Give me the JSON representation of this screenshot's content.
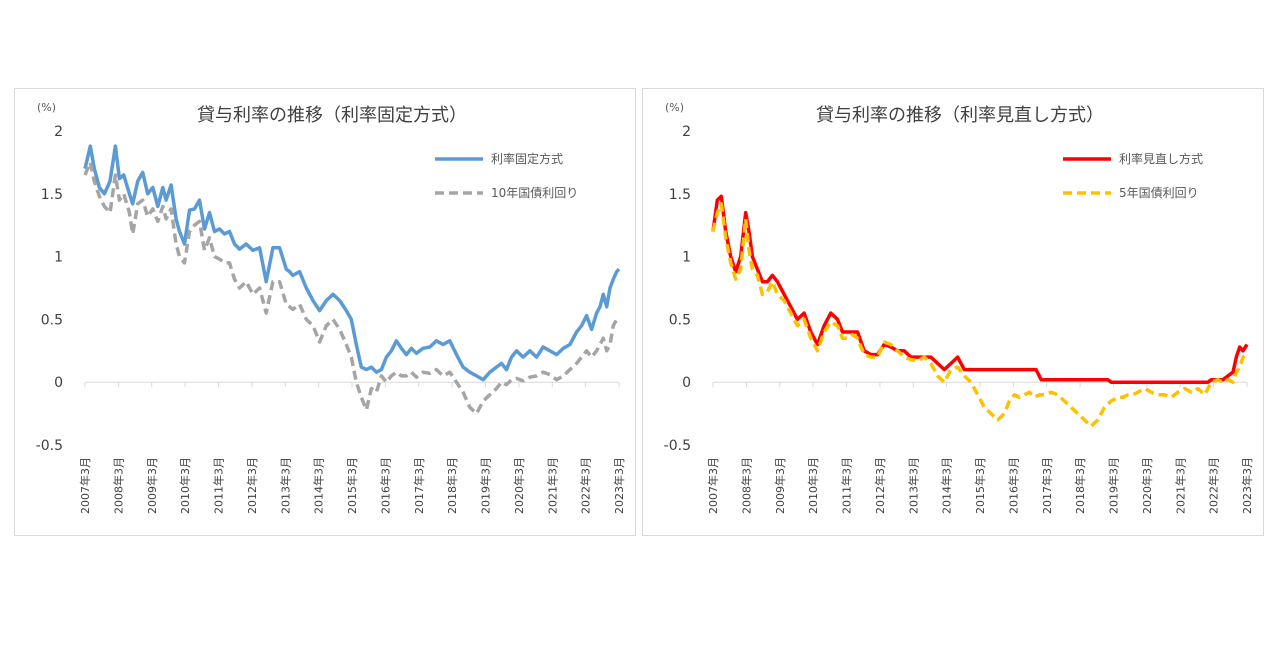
{
  "charts": [
    {
      "chart_data": {
        "type": "line",
        "title": "貸与利率の推移（利率固定方式）",
        "yunit": "(%)",
        "ylim": [
          -0.5,
          2
        ],
        "yticks": [
          "2",
          "1.5",
          "1",
          "0.5",
          "0",
          "-0.5"
        ],
        "ytick_values": [
          2,
          1.5,
          1,
          0.5,
          0,
          -0.5
        ],
        "xlim": [
          2007.17,
          2023.17
        ],
        "xticks": [
          "2007年3月",
          "2008年3月",
          "2009年3月",
          "2010年3月",
          "2011年3月",
          "2012年3月",
          "2013年3月",
          "2014年3月",
          "2015年3月",
          "2016年3月",
          "2017年3月",
          "2018年3月",
          "2019年3月",
          "2020年3月",
          "2021年3月",
          "2022年3月",
          "2023年3月"
        ],
        "legend_position": "top-right",
        "grid": false,
        "series": [
          {
            "name": "利率固定方式",
            "color": "#5b9bd5",
            "dash": "solid",
            "x": [
              2007.17,
              2007.33,
              2007.45,
              2007.6,
              2007.75,
              2007.92,
              2008.08,
              2008.2,
              2008.33,
              2008.5,
              2008.6,
              2008.75,
              2008.9,
              2009.05,
              2009.2,
              2009.35,
              2009.5,
              2009.6,
              2009.75,
              2009.9,
              2010.0,
              2010.15,
              2010.3,
              2010.45,
              2010.6,
              2010.75,
              2010.9,
              2011.05,
              2011.2,
              2011.35,
              2011.5,
              2011.65,
              2011.8,
              2012.0,
              2012.2,
              2012.4,
              2012.6,
              2012.8,
              2013.0,
              2013.2,
              2013.3,
              2013.4,
              2013.6,
              2013.8,
              2014.0,
              2014.2,
              2014.4,
              2014.6,
              2014.8,
              2015.0,
              2015.15,
              2015.3,
              2015.45,
              2015.6,
              2015.75,
              2015.9,
              2016.05,
              2016.2,
              2016.35,
              2016.5,
              2016.65,
              2016.8,
              2016.95,
              2017.1,
              2017.3,
              2017.5,
              2017.7,
              2017.9,
              2018.1,
              2018.3,
              2018.5,
              2018.7,
              2018.9,
              2019.1,
              2019.3,
              2019.5,
              2019.65,
              2019.8,
              2019.95,
              2020.1,
              2020.3,
              2020.5,
              2020.7,
              2020.9,
              2021.1,
              2021.3,
              2021.5,
              2021.7,
              2021.9,
              2022.05,
              2022.2,
              2022.35,
              2022.5,
              2022.6,
              2022.7,
              2022.8,
              2022.9,
              2023.0,
              2023.1,
              2023.17
            ],
            "y": [
              1.7,
              1.88,
              1.7,
              1.55,
              1.5,
              1.6,
              1.88,
              1.62,
              1.65,
              1.5,
              1.42,
              1.6,
              1.67,
              1.5,
              1.55,
              1.4,
              1.55,
              1.45,
              1.57,
              1.3,
              1.2,
              1.1,
              1.37,
              1.38,
              1.45,
              1.22,
              1.35,
              1.2,
              1.22,
              1.18,
              1.2,
              1.1,
              1.06,
              1.1,
              1.05,
              1.07,
              0.8,
              1.07,
              1.07,
              0.9,
              0.88,
              0.85,
              0.88,
              0.75,
              0.65,
              0.57,
              0.65,
              0.7,
              0.65,
              0.57,
              0.5,
              0.3,
              0.12,
              0.1,
              0.12,
              0.08,
              0.1,
              0.2,
              0.25,
              0.33,
              0.27,
              0.22,
              0.27,
              0.23,
              0.27,
              0.28,
              0.33,
              0.3,
              0.33,
              0.22,
              0.12,
              0.08,
              0.05,
              0.02,
              0.08,
              0.12,
              0.15,
              0.1,
              0.2,
              0.25,
              0.2,
              0.25,
              0.2,
              0.28,
              0.25,
              0.22,
              0.27,
              0.3,
              0.4,
              0.45,
              0.53,
              0.42,
              0.55,
              0.6,
              0.7,
              0.6,
              0.75,
              0.82,
              0.88,
              0.9
            ]
          },
          {
            "name": "10年国債利回り",
            "color": "#a5a5a5",
            "dash": "dashed",
            "x": [
              2007.17,
              2007.33,
              2007.45,
              2007.6,
              2007.75,
              2007.92,
              2008.08,
              2008.2,
              2008.33,
              2008.5,
              2008.6,
              2008.75,
              2008.9,
              2009.05,
              2009.2,
              2009.35,
              2009.5,
              2009.6,
              2009.75,
              2009.9,
              2010.0,
              2010.15,
              2010.3,
              2010.45,
              2010.6,
              2010.75,
              2010.9,
              2011.05,
              2011.2,
              2011.35,
              2011.5,
              2011.65,
              2011.8,
              2012.0,
              2012.2,
              2012.4,
              2012.6,
              2012.8,
              2013.0,
              2013.2,
              2013.3,
              2013.4,
              2013.6,
              2013.8,
              2014.0,
              2014.2,
              2014.4,
              2014.6,
              2014.8,
              2015.0,
              2015.15,
              2015.3,
              2015.45,
              2015.6,
              2015.75,
              2015.9,
              2016.05,
              2016.2,
              2016.35,
              2016.5,
              2016.65,
              2016.8,
              2016.95,
              2017.1,
              2017.3,
              2017.5,
              2017.7,
              2017.9,
              2018.1,
              2018.3,
              2018.5,
              2018.7,
              2018.9,
              2019.1,
              2019.3,
              2019.5,
              2019.65,
              2019.8,
              2019.95,
              2020.1,
              2020.3,
              2020.5,
              2020.7,
              2020.9,
              2021.1,
              2021.3,
              2021.5,
              2021.7,
              2021.9,
              2022.05,
              2022.2,
              2022.35,
              2022.5,
              2022.6,
              2022.7,
              2022.8,
              2022.9,
              2023.0,
              2023.1,
              2023.17
            ],
            "y": [
              1.65,
              1.75,
              1.6,
              1.48,
              1.4,
              1.35,
              1.65,
              1.45,
              1.5,
              1.35,
              1.18,
              1.42,
              1.45,
              1.32,
              1.38,
              1.28,
              1.4,
              1.3,
              1.38,
              1.1,
              1.0,
              0.95,
              1.2,
              1.25,
              1.28,
              1.05,
              1.15,
              1.0,
              0.98,
              0.95,
              0.95,
              0.82,
              0.75,
              0.8,
              0.7,
              0.75,
              0.55,
              0.8,
              0.8,
              0.62,
              0.6,
              0.58,
              0.62,
              0.5,
              0.45,
              0.32,
              0.45,
              0.5,
              0.42,
              0.3,
              0.2,
              0.0,
              -0.12,
              -0.22,
              -0.05,
              -0.08,
              0.05,
              0.0,
              0.05,
              0.08,
              0.05,
              0.05,
              0.08,
              0.04,
              0.08,
              0.07,
              0.1,
              0.05,
              0.08,
              0.0,
              -0.08,
              -0.2,
              -0.25,
              -0.15,
              -0.1,
              -0.05,
              0.0,
              -0.02,
              0.02,
              0.03,
              0.01,
              0.04,
              0.05,
              0.08,
              0.06,
              0.02,
              0.05,
              0.1,
              0.15,
              0.2,
              0.25,
              0.2,
              0.25,
              0.3,
              0.35,
              0.25,
              0.3,
              0.45,
              0.5,
              0.52
            ]
          }
        ]
      }
    },
    {
      "chart_data": {
        "type": "line",
        "title": "貸与利率の推移（利率見直し方式）",
        "yunit": "(%)",
        "ylim": [
          -0.5,
          2
        ],
        "yticks": [
          "2",
          "1.5",
          "1",
          "0.5",
          "0",
          "-0.5"
        ],
        "ytick_values": [
          2,
          1.5,
          1,
          0.5,
          0,
          -0.5
        ],
        "xlim": [
          2007.17,
          2023.17
        ],
        "xticks": [
          "2007年3月",
          "2008年3月",
          "2009年3月",
          "2010年3月",
          "2011年3月",
          "2012年3月",
          "2013年3月",
          "2014年3月",
          "2015年3月",
          "2016年3月",
          "2017年3月",
          "2018年3月",
          "2019年3月",
          "2020年3月",
          "2021年3月",
          "2022年3月",
          "2023年3月"
        ],
        "legend_position": "top-right",
        "grid": false,
        "series": [
          {
            "name": "利率見直し方式",
            "color": "#ff0000",
            "dash": "solid",
            "x": [
              2007.17,
              2007.3,
              2007.42,
              2007.55,
              2007.7,
              2007.85,
              2008.0,
              2008.15,
              2008.25,
              2008.35,
              2008.5,
              2008.65,
              2008.8,
              2008.95,
              2009.1,
              2009.3,
              2009.5,
              2009.7,
              2009.9,
              2010.1,
              2010.3,
              2010.5,
              2010.7,
              2010.9,
              2011.05,
              2011.2,
              2011.35,
              2011.5,
              2011.7,
              2011.9,
              2012.1,
              2012.3,
              2012.5,
              2012.7,
              2012.9,
              2013.1,
              2013.3,
              2013.5,
              2013.7,
              2013.9,
              2014.1,
              2014.3,
              2014.5,
              2014.7,
              2014.9,
              2015.1,
              2015.2,
              2015.3,
              2015.4,
              2015.5,
              2015.7,
              2015.9,
              2016.1,
              2016.3,
              2016.5,
              2016.7,
              2016.85,
              2017.0,
              2017.5,
              2018.0,
              2018.5,
              2019.0,
              2019.1,
              2019.5,
              2020.0,
              2020.5,
              2021.0,
              2021.5,
              2022.0,
              2022.1,
              2022.3,
              2022.45,
              2022.6,
              2022.75,
              2022.85,
              2022.95,
              2023.05,
              2023.17
            ],
            "y": [
              1.2,
              1.45,
              1.48,
              1.2,
              1.0,
              0.88,
              1.0,
              1.35,
              1.2,
              1.0,
              0.9,
              0.8,
              0.8,
              0.85,
              0.8,
              0.7,
              0.6,
              0.5,
              0.55,
              0.4,
              0.3,
              0.45,
              0.55,
              0.5,
              0.4,
              0.4,
              0.4,
              0.4,
              0.25,
              0.22,
              0.22,
              0.3,
              0.28,
              0.25,
              0.25,
              0.2,
              0.2,
              0.2,
              0.2,
              0.15,
              0.1,
              0.15,
              0.2,
              0.1,
              0.1,
              0.1,
              0.1,
              0.1,
              0.1,
              0.1,
              0.1,
              0.1,
              0.1,
              0.1,
              0.1,
              0.1,
              0.1,
              0.02,
              0.02,
              0.02,
              0.02,
              0.02,
              0.0,
              0.0,
              0.0,
              0.0,
              0.0,
              0.0,
              0.0,
              0.02,
              0.02,
              0.02,
              0.05,
              0.08,
              0.2,
              0.28,
              0.25,
              0.3
            ]
          },
          {
            "name": "5年国債利回り",
            "color": "#ffc000",
            "dash": "dashed",
            "x": [
              2007.17,
              2007.3,
              2007.42,
              2007.55,
              2007.7,
              2007.85,
              2008.0,
              2008.15,
              2008.25,
              2008.35,
              2008.5,
              2008.65,
              2008.8,
              2008.95,
              2009.1,
              2009.3,
              2009.5,
              2009.7,
              2009.9,
              2010.1,
              2010.3,
              2010.5,
              2010.7,
              2010.9,
              2011.05,
              2011.2,
              2011.35,
              2011.5,
              2011.7,
              2011.9,
              2012.1,
              2012.3,
              2012.5,
              2012.7,
              2012.9,
              2013.1,
              2013.3,
              2013.5,
              2013.7,
              2013.9,
              2014.1,
              2014.3,
              2014.5,
              2014.7,
              2014.9,
              2015.1,
              2015.3,
              2015.5,
              2015.7,
              2015.9,
              2016.05,
              2016.2,
              2016.35,
              2016.5,
              2016.65,
              2016.8,
              2016.95,
              2017.1,
              2017.3,
              2017.5,
              2017.7,
              2017.9,
              2018.1,
              2018.3,
              2018.5,
              2018.7,
              2018.9,
              2019.1,
              2019.3,
              2019.45,
              2019.6,
              2019.75,
              2019.9,
              2020.1,
              2020.3,
              2020.5,
              2020.7,
              2020.9,
              2021.1,
              2021.3,
              2021.5,
              2021.7,
              2021.9,
              2022.1,
              2022.3,
              2022.45,
              2022.6,
              2022.75,
              2022.85,
              2022.95,
              2023.05,
              2023.17
            ],
            "y": [
              1.2,
              1.35,
              1.42,
              1.15,
              0.95,
              0.82,
              0.9,
              1.3,
              1.05,
              0.9,
              0.85,
              0.7,
              0.72,
              0.8,
              0.7,
              0.65,
              0.55,
              0.45,
              0.5,
              0.35,
              0.25,
              0.4,
              0.48,
              0.45,
              0.35,
              0.35,
              0.38,
              0.35,
              0.22,
              0.2,
              0.2,
              0.32,
              0.3,
              0.25,
              0.2,
              0.18,
              0.17,
              0.2,
              0.15,
              0.05,
              0.0,
              0.1,
              0.12,
              0.05,
              0.0,
              -0.1,
              -0.2,
              -0.25,
              -0.3,
              -0.25,
              -0.15,
              -0.1,
              -0.12,
              -0.1,
              -0.08,
              -0.12,
              -0.1,
              -0.1,
              -0.08,
              -0.1,
              -0.15,
              -0.2,
              -0.25,
              -0.3,
              -0.35,
              -0.3,
              -0.2,
              -0.15,
              -0.12,
              -0.12,
              -0.1,
              -0.1,
              -0.08,
              -0.05,
              -0.08,
              -0.1,
              -0.1,
              -0.12,
              -0.08,
              -0.05,
              -0.08,
              -0.05,
              -0.1,
              0.0,
              0.02,
              0.0,
              0.02,
              0.0,
              0.08,
              0.12,
              0.2,
              0.22
            ]
          }
        ]
      }
    }
  ]
}
